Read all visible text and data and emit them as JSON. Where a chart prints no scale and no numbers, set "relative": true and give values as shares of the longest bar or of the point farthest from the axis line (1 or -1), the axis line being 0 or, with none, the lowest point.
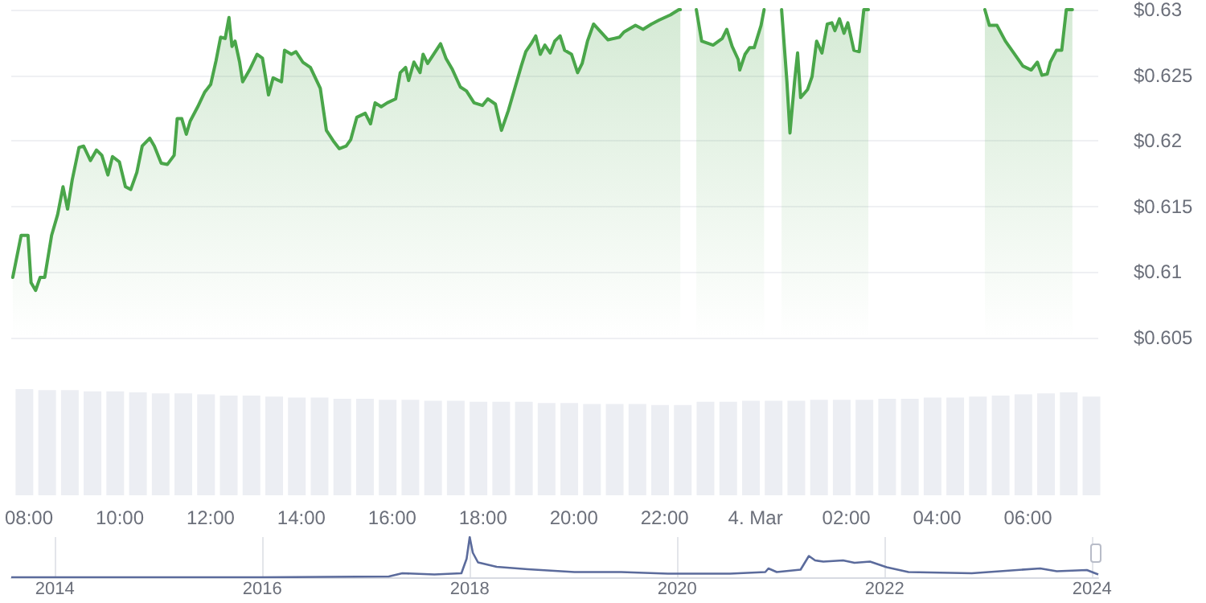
{
  "chart_data": [
    {
      "type": "area",
      "color": "#4aa64a",
      "x": [
        "--03-03T07:47",
        "--03-03T07:58",
        "--03-03T08:07",
        "--03-03T08:11",
        "--03-03T08:17",
        "--03-03T08:23",
        "--03-03T08:29",
        "--03-03T08:38",
        "--03-03T08:46",
        "--03-03T08:53",
        "--03-03T08:59",
        "--03-03T09:05",
        "--03-03T09:14",
        "--03-03T09:20",
        "--03-03T09:29",
        "--03-03T09:37",
        "--03-03T09:44",
        "--03-03T09:52",
        "--03-03T09:58",
        "--03-03T10:07",
        "--03-03T10:15",
        "--03-03T10:22",
        "--03-03T10:30",
        "--03-03T10:37",
        "--03-03T10:47",
        "--03-03T10:53",
        "--03-03T11:02",
        "--03-03T11:10",
        "--03-03T11:19",
        "--03-03T11:23",
        "--03-03T11:29",
        "--03-03T11:35",
        "--03-03T11:40",
        "--03-03T11:50",
        "--03-03T11:59",
        "--03-03T12:07",
        "--03-03T12:14",
        "--03-03T12:20",
        "--03-03T12:26",
        "--03-03T12:31",
        "--03-03T12:35",
        "--03-03T12:39",
        "--03-03T12:45",
        "--03-03T12:49",
        "--03-03T12:58",
        "--03-03T13:08",
        "--03-03T13:15",
        "--03-03T13:23",
        "--03-03T13:29",
        "--03-03T13:40",
        "--03-03T13:44",
        "--03-03T13:53",
        "--03-03T13:59",
        "--03-03T14:08",
        "--03-03T14:18",
        "--03-03T14:31",
        "--03-03T14:39",
        "--03-03T14:48",
        "--03-03T14:56",
        "--03-03T15:05",
        "--03-03T15:11",
        "--03-03T15:19",
        "--03-03T15:30",
        "--03-03T15:37",
        "--03-03T15:43",
        "--03-03T15:51",
        "--03-03T15:59",
        "--03-03T16:10",
        "--03-03T16:16",
        "--03-03T16:23",
        "--03-03T16:27",
        "--03-03T16:34",
        "--03-03T16:42",
        "--03-03T16:46",
        "--03-03T16:52",
        "--03-03T17:01",
        "--03-03T17:09",
        "--03-03T17:16",
        "--03-03T17:24",
        "--03-03T17:35",
        "--03-03T17:43",
        "--03-03T17:53",
        "--03-03T18:04",
        "--03-03T18:11",
        "--03-03T18:21",
        "--03-03T18:29",
        "--03-03T18:38",
        "--03-03T18:46",
        "--03-03T18:55",
        "--03-03T19:01",
        "--03-03T19:08",
        "--03-03T19:14",
        "--03-03T19:20",
        "--03-03T19:26",
        "--03-03T19:33",
        "--03-03T19:39",
        "--03-03T19:46",
        "--03-03T19:52",
        "--03-03T20:01",
        "--03-03T20:09",
        "--03-03T20:15",
        "--03-03T20:22",
        "--03-03T20:30",
        "--03-03T20:49",
        "--03-03T21:04",
        "--03-03T21:10",
        "--03-03T21:25",
        "--03-03T21:35",
        "--03-03T21:46",
        "--03-03T21:56",
        "--03-03T22:11",
        "--03-03T22:22",
        "--03-03T22:24",
        "--03-03T22:36",
        "--03-03T22:45",
        "--03-03T22:52",
        "--03-03T23:07",
        "--03-03T23:19",
        "--03-03T23:25",
        "--03-03T23:32",
        "--03-03T23:40",
        "--03-03T23:42",
        "--03-03T23:49",
        "--03-03T23:55",
        "--03-04T00:01",
        "--03-04T00:10",
        "--03-04T00:14",
        "--03-04T00:24",
        "--03-04T00:37",
        "--03-04T00:44",
        "--03-04T00:48",
        "--03-04T00:54",
        "--03-04T00:58",
        "--03-04T01:02",
        "--03-04T01:11",
        "--03-04T01:17",
        "--03-04T01:23",
        "--03-04T01:30",
        "--03-04T01:37",
        "--03-04T01:43",
        "--03-04T01:47",
        "--03-04T01:53",
        "--03-04T01:59",
        "--03-04T02:04",
        "--03-04T02:12",
        "--03-04T02:19",
        "--03-04T02:25",
        "--03-04T02:31",
        "--03-04T03:48",
        "--03-04T05:04",
        "--03-04T05:10",
        "--03-04T05:20",
        "--03-04T05:31",
        "--03-04T05:42",
        "--03-04T05:54",
        "--03-04T06:05",
        "--03-04T06:13",
        "--03-04T06:19",
        "--03-04T06:26",
        "--03-04T06:30",
        "--03-04T06:38",
        "--03-04T06:45",
        "--03-04T06:51",
        "--03-04T06:59"
      ],
      "values": [
        0.6096,
        0.6128,
        0.6128,
        0.6092,
        0.6086,
        0.6096,
        0.6096,
        0.6128,
        0.6144,
        0.6165,
        0.6148,
        0.617,
        0.6195,
        0.6196,
        0.6185,
        0.6193,
        0.6189,
        0.6174,
        0.6188,
        0.6184,
        0.6165,
        0.6163,
        0.6176,
        0.6196,
        0.6202,
        0.6196,
        0.6183,
        0.6182,
        0.6189,
        0.6217,
        0.6217,
        0.6205,
        0.6215,
        0.6226,
        0.6237,
        0.6243,
        0.6261,
        0.6279,
        0.6278,
        0.6294,
        0.6272,
        0.6276,
        0.626,
        0.6245,
        0.6254,
        0.6266,
        0.6263,
        0.6235,
        0.6248,
        0.6245,
        0.6269,
        0.6266,
        0.6268,
        0.626,
        0.6256,
        0.624,
        0.6208,
        0.62,
        0.6194,
        0.6196,
        0.6201,
        0.6218,
        0.6221,
        0.6213,
        0.6229,
        0.6226,
        0.6229,
        0.6232,
        0.6252,
        0.6256,
        0.6246,
        0.626,
        0.6252,
        0.6266,
        0.6259,
        0.6267,
        0.6274,
        0.6263,
        0.6255,
        0.6241,
        0.6238,
        0.6229,
        0.6227,
        0.6232,
        0.6228,
        0.6208,
        0.6223,
        0.6239,
        0.6257,
        0.6268,
        0.6274,
        0.628,
        0.6266,
        0.6273,
        0.6267,
        0.6276,
        0.628,
        0.6269,
        0.6266,
        0.6252,
        0.6259,
        0.6276,
        0.6289,
        0.6277,
        0.6279,
        0.6283,
        0.6288,
        0.6285,
        0.6289,
        0.6292,
        0.6296,
        0.63,
        0.63,
        null,
        0.63,
        0.6276,
        0.6273,
        0.6278,
        0.6285,
        0.6272,
        0.6262,
        0.6254,
        0.6266,
        0.6271,
        0.6271,
        0.6288,
        0.63,
        null,
        0.63,
        0.6245,
        0.6206,
        0.6245,
        0.6267,
        0.6233,
        0.6239,
        0.6249,
        0.6276,
        0.6267,
        0.6289,
        0.629,
        0.6284,
        0.6293,
        0.6282,
        0.629,
        0.6269,
        0.6268,
        0.63,
        0.63,
        null,
        0.63,
        0.6288,
        0.6288,
        0.6276,
        0.6267,
        0.6257,
        0.6254,
        0.626,
        0.625,
        0.6251,
        0.626,
        0.6269,
        0.6269,
        0.63,
        0.63
      ],
      "xlim": [
        "--03-03T07:45",
        "--03-04T07:33"
      ],
      "ylim": [
        0.605,
        0.63
      ],
      "yticks": [
        {
          "value": 0.605,
          "label": "$0.605"
        },
        {
          "value": 0.61,
          "label": "$0.61"
        },
        {
          "value": 0.615,
          "label": "$0.615"
        },
        {
          "value": 0.62,
          "label": "$0.62"
        },
        {
          "value": 0.625,
          "label": "$0.625"
        },
        {
          "value": 0.63,
          "label": "$0.63"
        }
      ],
      "grid": "y",
      "tick_labels": "y"
    },
    {
      "type": "bar",
      "color": "#eceef3",
      "relative": true,
      "x": [
        "--03-03T07:54",
        "--03-03T08:24",
        "--03-03T08:54",
        "--03-03T09:24",
        "--03-03T09:54",
        "--03-03T10:24",
        "--03-03T10:54",
        "--03-03T11:24",
        "--03-03T11:54",
        "--03-03T12:24",
        "--03-03T12:54",
        "--03-03T13:24",
        "--03-03T13:54",
        "--03-03T14:24",
        "--03-03T14:54",
        "--03-03T15:24",
        "--03-03T15:54",
        "--03-03T16:24",
        "--03-03T16:54",
        "--03-03T17:24",
        "--03-03T17:54",
        "--03-03T18:24",
        "--03-03T18:54",
        "--03-03T19:24",
        "--03-03T19:54",
        "--03-03T20:24",
        "--03-03T20:54",
        "--03-03T21:24",
        "--03-03T21:54",
        "--03-03T22:24",
        "--03-03T22:54",
        "--03-03T23:24",
        "--03-03T23:54",
        "--03-04T00:24",
        "--03-04T00:54",
        "--03-04T01:24",
        "--03-04T01:54",
        "--03-04T02:24",
        "--03-04T02:54",
        "--03-04T03:24",
        "--03-04T03:54",
        "--03-04T04:24",
        "--03-04T04:54",
        "--03-04T05:24",
        "--03-04T05:54",
        "--03-04T06:24",
        "--03-04T06:54",
        "--03-04T07:24"
      ],
      "values": [
        1,
        0.99,
        0.99,
        0.98,
        0.98,
        0.97,
        0.96,
        0.96,
        0.95,
        0.94,
        0.94,
        0.93,
        0.92,
        0.92,
        0.91,
        0.91,
        0.9,
        0.9,
        0.89,
        0.89,
        0.88,
        0.88,
        0.88,
        0.87,
        0.87,
        0.86,
        0.86,
        0.86,
        0.85,
        0.85,
        0.88,
        0.88,
        0.89,
        0.89,
        0.89,
        0.9,
        0.9,
        0.9,
        0.91,
        0.91,
        0.92,
        0.92,
        0.93,
        0.94,
        0.95,
        0.96,
        0.97,
        0.93
      ],
      "xlim": [
        "--03-03T07:45",
        "--03-04T07:33"
      ],
      "xticks": [
        {
          "value": "--03-03T08:00",
          "label": "08:00"
        },
        {
          "value": "--03-03T10:00",
          "label": "10:00"
        },
        {
          "value": "--03-03T12:00",
          "label": "12:00"
        },
        {
          "value": "--03-03T14:00",
          "label": "14:00"
        },
        {
          "value": "--03-03T16:00",
          "label": "16:00"
        },
        {
          "value": "--03-03T18:00",
          "label": "18:00"
        },
        {
          "value": "--03-03T20:00",
          "label": "20:00"
        },
        {
          "value": "--03-03T22:00",
          "label": "22:00"
        },
        {
          "value": "--03-04",
          "label": "4. Mar"
        },
        {
          "value": "--03-04T02:00",
          "label": "02:00"
        },
        {
          "value": "--03-04T04:00",
          "label": "04:00"
        },
        {
          "value": "--03-04T06:00",
          "label": "06:00"
        }
      ],
      "tick_labels": "x"
    },
    {
      "type": "line",
      "color": "#5b6b9c",
      "relative": true,
      "x": [
        2013.58,
        2016.0,
        2017.22,
        2017.35,
        2017.66,
        2017.92,
        2017.97,
        2018.0,
        2018.03,
        2018.08,
        2018.26,
        2018.56,
        2019.01,
        2019.46,
        2019.91,
        2020.51,
        2020.85,
        2020.88,
        2020.96,
        2021.19,
        2021.27,
        2021.33,
        2021.41,
        2021.6,
        2021.71,
        2021.86,
        2022.02,
        2022.23,
        2022.84,
        2023.5,
        2023.66,
        2023.95,
        2024.06
      ],
      "values": [
        0,
        0,
        0.02,
        0.1,
        0.07,
        0.1,
        0.46,
        1,
        0.61,
        0.37,
        0.26,
        0.2,
        0.13,
        0.13,
        0.09,
        0.09,
        0.13,
        0.22,
        0.13,
        0.19,
        0.53,
        0.42,
        0.39,
        0.42,
        0.36,
        0.39,
        0.25,
        0.13,
        0.1,
        0.22,
        0.15,
        0.18,
        0.07
      ],
      "xlim": [
        2013.58,
        2024.06
      ],
      "xticks": [
        2014,
        2016,
        2018,
        2020,
        2022,
        2024
      ],
      "grid": "x",
      "tick_labels": "x"
    }
  ]
}
